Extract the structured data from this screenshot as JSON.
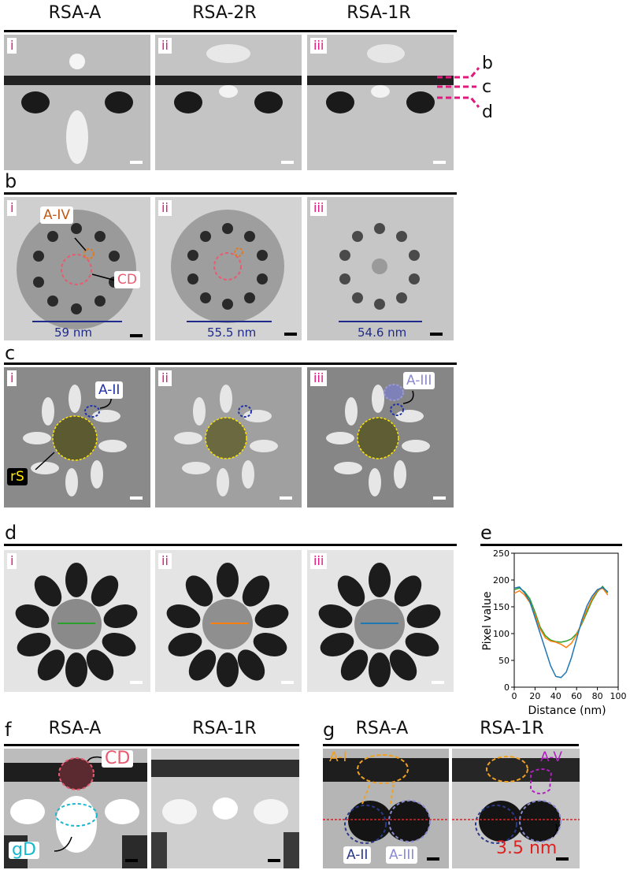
{
  "headers": [
    "RSA-A",
    "RSA-2R",
    "RSA-1R"
  ],
  "panel_letters": [
    "a",
    "b",
    "c",
    "d",
    "e",
    "f",
    "g"
  ],
  "roman": [
    "i",
    "ii",
    "iii"
  ],
  "section_a": {
    "markers": [
      "b",
      "c",
      "d"
    ]
  },
  "section_b": {
    "labels": {
      "a_iv": "A-IV",
      "cd": "CD"
    },
    "dims": [
      "59 nm",
      "55.5 nm",
      "54.6 nm"
    ]
  },
  "section_c": {
    "labels": {
      "a_ii": "A-II",
      "a_iii": "A-III",
      "rs": "rS"
    }
  },
  "section_f": {
    "titles": [
      "RSA-A",
      "RSA-1R"
    ],
    "labels": {
      "cd": "CD",
      "gd": "gD"
    }
  },
  "section_g": {
    "titles": [
      "RSA-A",
      "RSA-1R"
    ],
    "labels": {
      "a_i": "A-I",
      "a_v": "A-V",
      "a_ii": "A-II",
      "a_iii": "A-III",
      "dist": "3.5 nm"
    }
  },
  "chart_data": {
    "type": "line",
    "xlabel": "Distance (nm)",
    "ylabel": "Pixel value",
    "xlim": [
      0,
      100
    ],
    "ylim": [
      0,
      250
    ],
    "xticks": [
      0,
      20,
      40,
      60,
      80,
      100
    ],
    "yticks": [
      0,
      50,
      100,
      150,
      200,
      250
    ],
    "series": [
      {
        "color": "#2ca02c",
        "x": [
          0,
          5,
          10,
          15,
          20,
          25,
          30,
          35,
          40,
          45,
          50,
          55,
          60,
          65,
          70,
          75,
          80,
          85,
          90
        ],
        "y": [
          182,
          185,
          178,
          165,
          140,
          112,
          96,
          88,
          85,
          84,
          86,
          90,
          100,
          118,
          140,
          162,
          178,
          188,
          176
        ]
      },
      {
        "color": "#ff7f0e",
        "x": [
          0,
          5,
          10,
          15,
          20,
          25,
          30,
          35,
          40,
          45,
          50,
          55,
          60,
          65,
          70,
          75,
          80,
          85,
          90
        ],
        "y": [
          175,
          180,
          172,
          158,
          135,
          108,
          92,
          86,
          84,
          80,
          74,
          82,
          98,
          120,
          145,
          165,
          180,
          185,
          172
        ]
      },
      {
        "color": "#1f77b4",
        "x": [
          0,
          5,
          10,
          15,
          20,
          25,
          30,
          35,
          40,
          45,
          50,
          55,
          60,
          65,
          70,
          75,
          80,
          85,
          90
        ],
        "y": [
          185,
          187,
          176,
          160,
          130,
          100,
          70,
          40,
          20,
          18,
          28,
          55,
          90,
          125,
          152,
          170,
          182,
          186,
          178
        ]
      }
    ]
  }
}
